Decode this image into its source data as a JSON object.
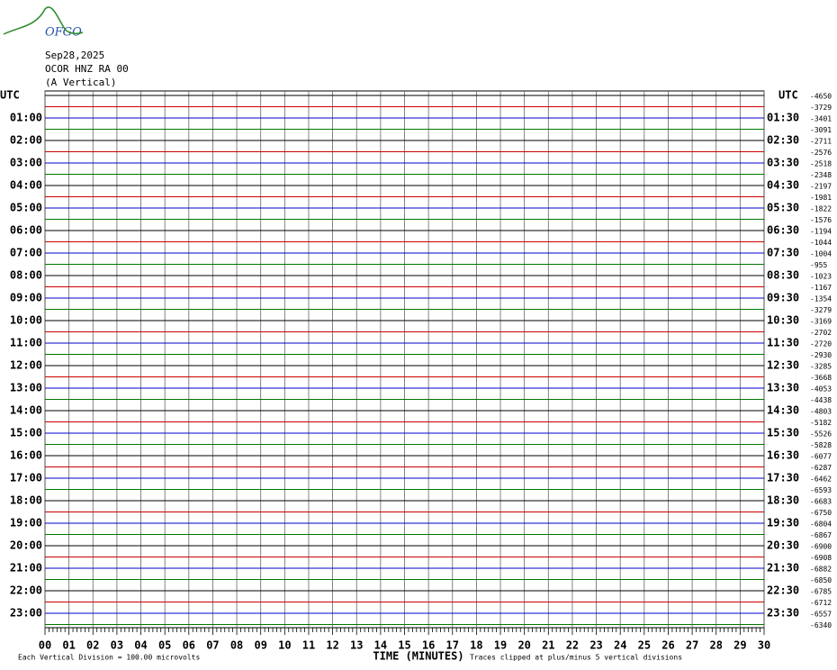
{
  "header": {
    "logo": "OFGO",
    "date": "Sep28,2025",
    "station": "OCOR HNZ RA 00",
    "component": "(A Vertical)",
    "left_unit": "UTC",
    "right_unit": "UTC"
  },
  "left_labels": [
    "01:00",
    "02:00",
    "03:00",
    "04:00",
    "05:00",
    "06:00",
    "07:00",
    "08:00",
    "09:00",
    "10:00",
    "11:00",
    "12:00",
    "13:00",
    "14:00",
    "15:00",
    "16:00",
    "17:00",
    "18:00",
    "19:00",
    "20:00",
    "21:00",
    "22:00",
    "23:00"
  ],
  "right_labels": [
    "01:30",
    "02:30",
    "03:30",
    "04:30",
    "05:30",
    "06:30",
    "07:30",
    "08:30",
    "09:30",
    "10:30",
    "11:30",
    "12:30",
    "13:30",
    "14:30",
    "15:30",
    "16:30",
    "17:30",
    "18:30",
    "19:30",
    "20:30",
    "21:30",
    "22:30",
    "23:30"
  ],
  "trace_offsets": [
    -4650,
    -3729,
    -3401,
    -3091,
    -2711,
    -2576,
    -2518,
    -2348,
    -2197,
    -1981,
    -1822,
    -1576,
    -1194,
    -1044,
    -1004,
    -955,
    -1023,
    -1167,
    -1354,
    -3279,
    -3169,
    -2702,
    -2720,
    -2930,
    -3285,
    -3668,
    -4053,
    -4438,
    -4803,
    -5182,
    -5526,
    -5828,
    -6077,
    -6287,
    -6462,
    -6593,
    -6683,
    -6750,
    -6804,
    -6867,
    -6900,
    -6908,
    -6882,
    -6850,
    -6785,
    -6712,
    -6557,
    -6340
  ],
  "trace_colors": [
    "#000000",
    "#cc0000",
    "#0000cc",
    "#007700"
  ],
  "x_axis": {
    "title": "TIME (MINUTES)",
    "xlim": [
      0,
      30
    ],
    "xticks": [
      {
        "value": 0,
        "label": "00"
      },
      {
        "value": 1,
        "label": "01"
      },
      {
        "value": 2,
        "label": "02"
      },
      {
        "value": 3,
        "label": "03"
      },
      {
        "value": 4,
        "label": "04"
      },
      {
        "value": 5,
        "label": "05"
      },
      {
        "value": 6,
        "label": "06"
      },
      {
        "value": 7,
        "label": "07"
      },
      {
        "value": 8,
        "label": "08"
      },
      {
        "value": 9,
        "label": "09"
      },
      10,
      11,
      12,
      13,
      14,
      15,
      16,
      17,
      18,
      19,
      20,
      21,
      22,
      23,
      24,
      25,
      26,
      27,
      28,
      29,
      30
    ]
  },
  "footer": {
    "scale_note": "Each Vertical Division =  100.00 microvolts",
    "clip_note": "Traces clipped at plus/minus 5 vertical divisions"
  }
}
